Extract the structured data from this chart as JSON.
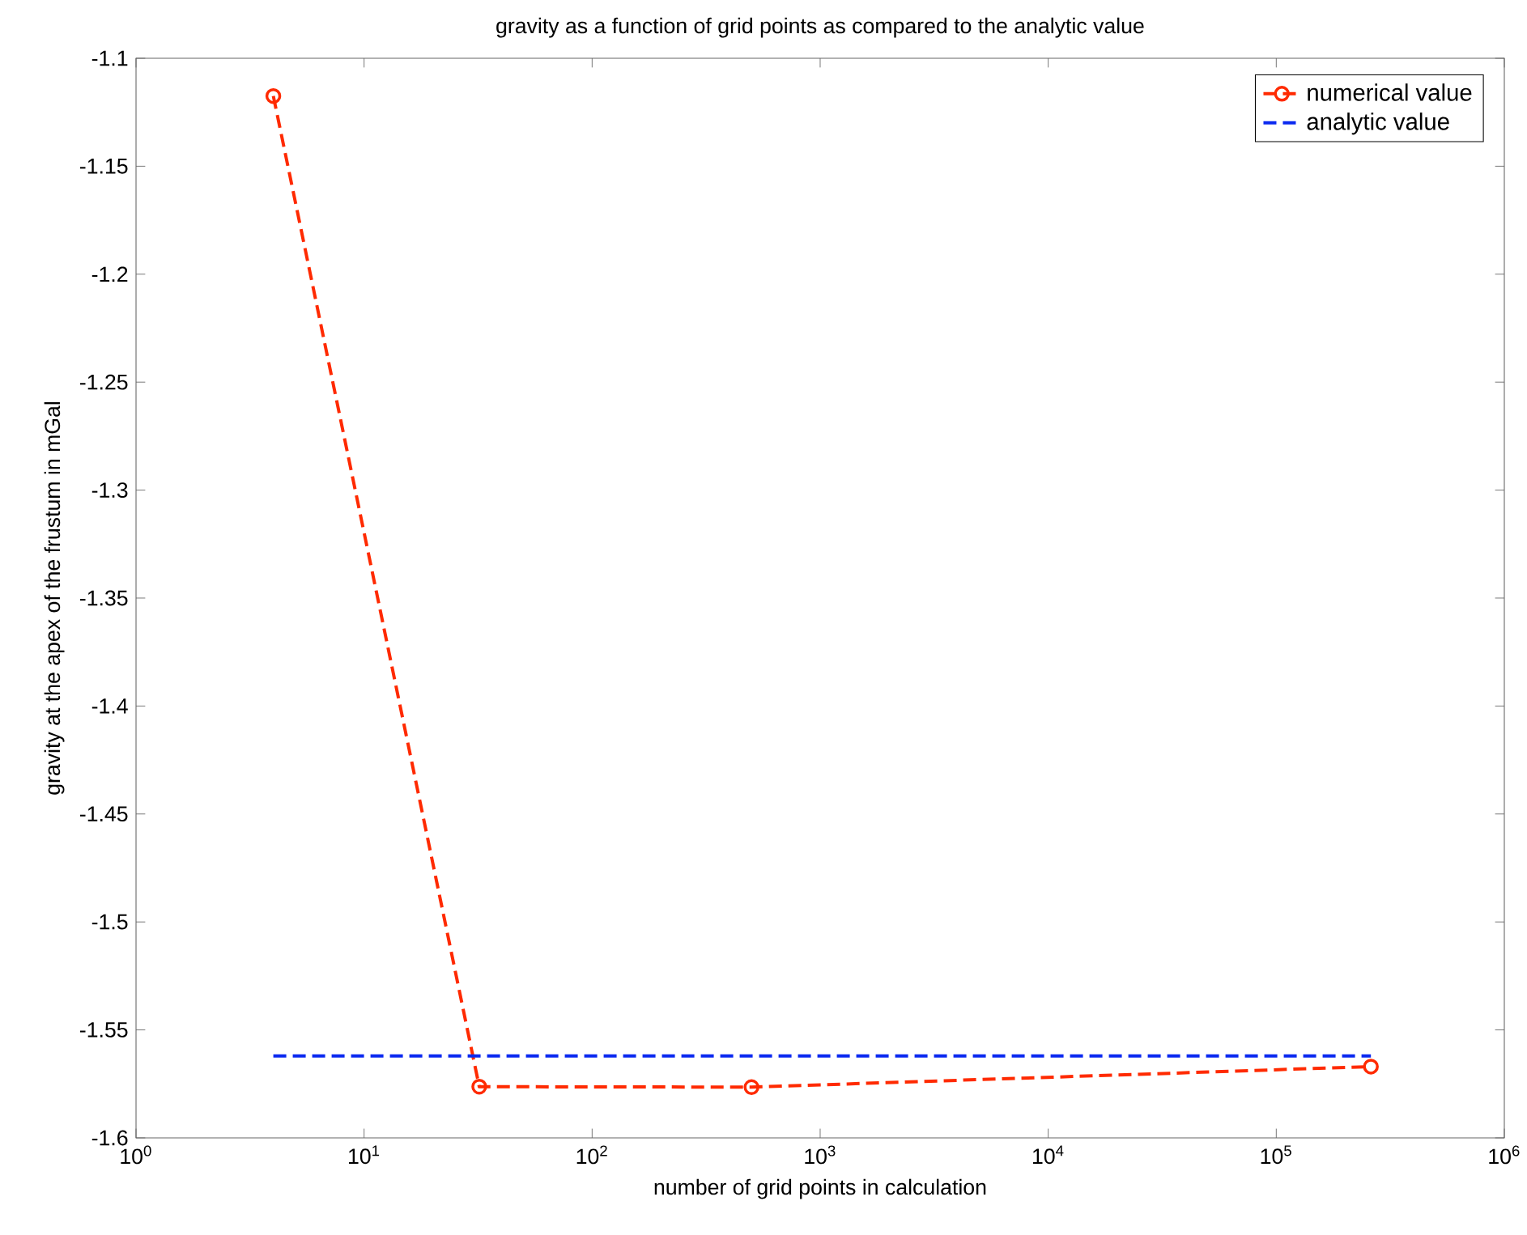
{
  "chart_data": {
    "type": "line",
    "title": "gravity as a function of grid points as compared to the analytic value",
    "xlabel": "number of grid points in calculation",
    "ylabel": "gravity at the apex of the frustum in mGal",
    "log": "x",
    "legend": "top right",
    "grid": false,
    "xlim": [
      1,
      1000000
    ],
    "xticks": [
      {
        "value": 1,
        "label": "10$^{0}$"
      },
      {
        "value": 10,
        "label": "10$^{1}$"
      },
      {
        "value": 100,
        "label": "10$^{2}$"
      },
      {
        "value": 1000,
        "label": "10$^{3}$"
      },
      {
        "value": 10000,
        "label": "10$^{4}$"
      },
      {
        "value": 100000,
        "label": "10$^{5}$"
      },
      {
        "value": 1000000,
        "label": "10$^{6}$"
      }
    ],
    "ylim": [
      -1.6,
      -1.1
    ],
    "yticks": [
      -1.6,
      -1.55,
      -1.5,
      -1.45,
      -1.4,
      -1.35,
      -1.3,
      -1.25,
      -1.2,
      -1.15,
      -1.1
    ],
    "series": [
      {
        "name": "numerical value",
        "color": "#ff2a00",
        "marker": "circle",
        "line_style": "dashed",
        "x": [
          4,
          32,
          500,
          260000
        ],
        "values": [
          -1.1175,
          -1.5763,
          -1.5765,
          -1.567
        ]
      },
      {
        "name": "analytic value",
        "color": "#0a28f0",
        "marker": "none",
        "line_style": "dashed",
        "x": [
          4,
          260000
        ],
        "values": [
          -1.5621,
          -1.5621
        ]
      }
    ]
  }
}
